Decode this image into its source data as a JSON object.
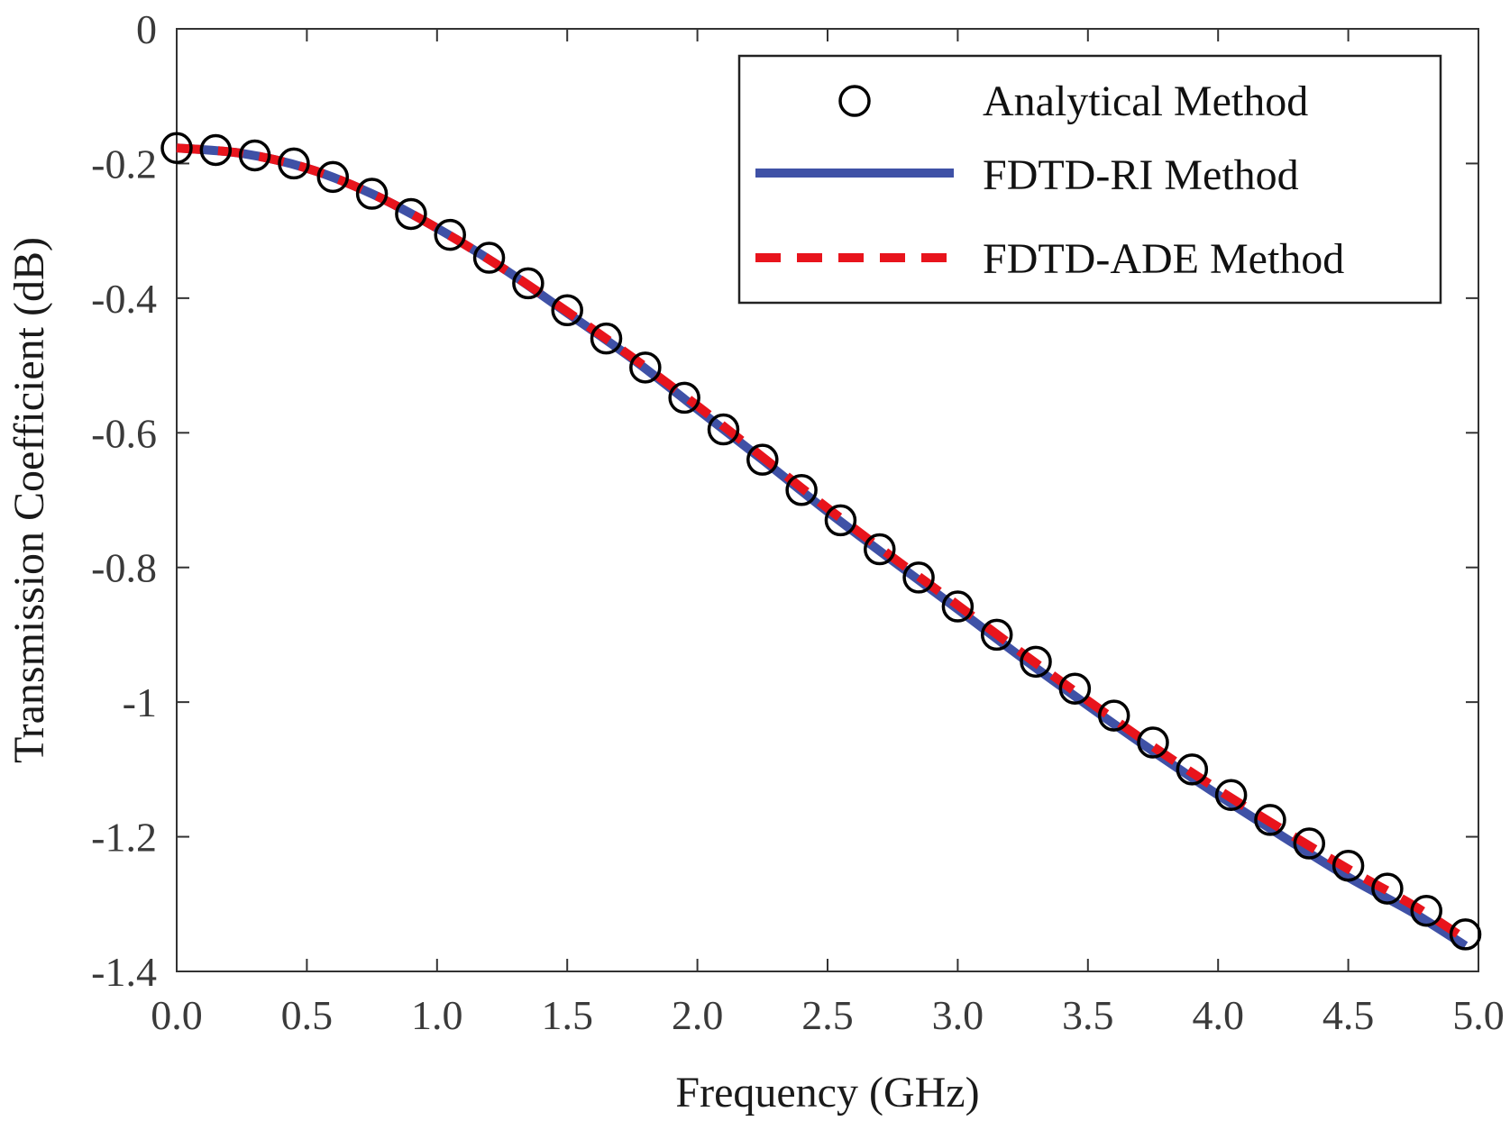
{
  "chart_data": {
    "type": "line",
    "title": "",
    "xlabel": "Frequency (GHz)",
    "ylabel": "Transmission Coefficient (dB)",
    "xlim": [
      0,
      5
    ],
    "ylim": [
      -1.4,
      0
    ],
    "xticks": [
      "0.0",
      "0.5",
      "1.0",
      "1.5",
      "2.0",
      "2.5",
      "3.0",
      "3.5",
      "4.0",
      "4.5",
      "5.0"
    ],
    "yticks": [
      "0",
      "-0.2",
      "-0.4",
      "-0.6",
      "-0.8",
      "-1",
      "-1.2",
      "-1.4"
    ],
    "grid": false,
    "legend_position": "top-right",
    "series": [
      {
        "name": "Analytical Method",
        "style": "markers",
        "marker": "open-circle",
        "color": "#000000",
        "x": [
          0,
          0.15,
          0.3,
          0.45,
          0.6,
          0.75,
          0.9,
          1.05,
          1.2,
          1.35,
          1.5,
          1.65,
          1.8,
          1.95,
          2.1,
          2.25,
          2.4,
          2.55,
          2.7,
          2.85,
          3.0,
          3.15,
          3.3,
          3.45,
          3.6,
          3.75,
          3.9,
          4.05,
          4.2,
          4.35,
          4.5,
          4.65,
          4.8,
          4.95
        ],
        "y": [
          -0.177,
          -0.18,
          -0.188,
          -0.2,
          -0.22,
          -0.245,
          -0.275,
          -0.306,
          -0.34,
          -0.378,
          -0.418,
          -0.46,
          -0.503,
          -0.548,
          -0.595,
          -0.64,
          -0.685,
          -0.73,
          -0.773,
          -0.815,
          -0.858,
          -0.9,
          -0.94,
          -0.98,
          -1.02,
          -1.06,
          -1.1,
          -1.138,
          -1.175,
          -1.21,
          -1.243,
          -1.277,
          -1.31,
          -1.345
        ]
      },
      {
        "name": "FDTD-RI Method",
        "style": "solid",
        "color": "#3f51a6",
        "x": [
          0,
          0.25,
          0.5,
          0.75,
          1.0,
          1.25,
          1.5,
          1.75,
          2.0,
          2.25,
          2.5,
          2.75,
          3.0,
          3.25,
          3.5,
          3.75,
          4.0,
          4.25,
          4.5,
          4.75,
          4.95
        ],
        "y": [
          -0.177,
          -0.185,
          -0.207,
          -0.245,
          -0.296,
          -0.355,
          -0.422,
          -0.49,
          -0.565,
          -0.64,
          -0.717,
          -0.79,
          -0.862,
          -0.935,
          -1.005,
          -1.073,
          -1.138,
          -1.2,
          -1.26,
          -1.313,
          -1.362
        ]
      },
      {
        "name": "FDTD-ADE Method",
        "style": "dashed",
        "color": "#e8141c",
        "x": [
          0,
          0.25,
          0.5,
          0.75,
          1.0,
          1.25,
          1.5,
          1.75,
          2.0,
          2.25,
          2.5,
          2.75,
          3.0,
          3.25,
          3.5,
          3.75,
          4.0,
          4.25,
          4.5,
          4.75,
          4.95
        ],
        "y": [
          -0.177,
          -0.185,
          -0.207,
          -0.245,
          -0.296,
          -0.355,
          -0.42,
          -0.488,
          -0.56,
          -0.636,
          -0.712,
          -0.785,
          -0.856,
          -0.928,
          -0.998,
          -1.066,
          -1.13,
          -1.19,
          -1.248,
          -1.302,
          -1.352
        ]
      }
    ]
  }
}
